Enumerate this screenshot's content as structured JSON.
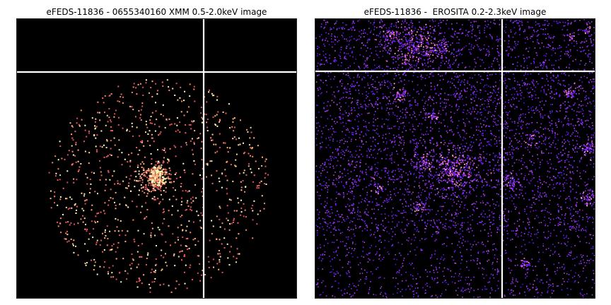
{
  "panels": [
    {
      "id": "left",
      "title": "eFEDS-11836 - 0655340160 XMM 0.5-2.0keV image",
      "colormap": "magma",
      "background": "#000000",
      "crosshair_color": "#ffffff"
    },
    {
      "id": "right",
      "title": "eFEDS-11836 -  EROSITA 0.2-2.3keV image",
      "colormap": "gnuplot2",
      "background": "#000000",
      "crosshair_color": "#ffffff"
    }
  ]
}
